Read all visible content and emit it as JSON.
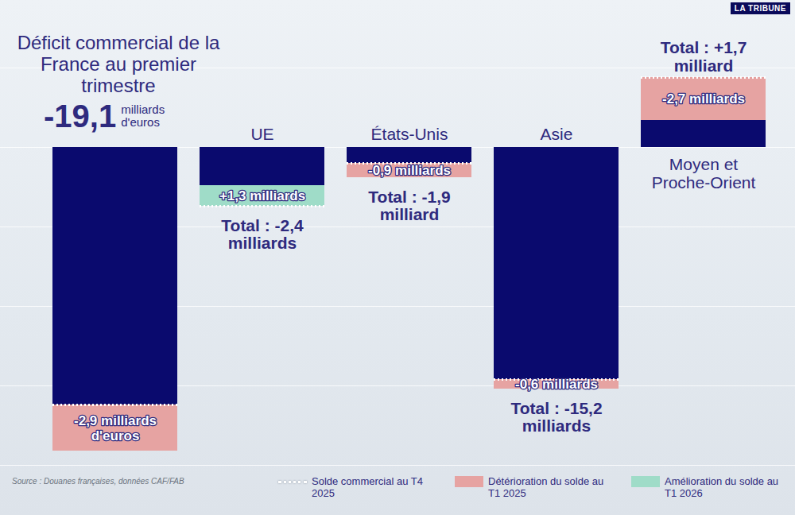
{
  "chart_data": {
    "type": "bar",
    "title": "Déficit commercial de la France au premier trimestre",
    "source": "Source : Douanes françaises, données CAF/FAB",
    "brand": "LA TRIBUNE",
    "categories": [
      null,
      "UE",
      "États-Unis",
      "Asie",
      "Moyen et Proche-Orient"
    ],
    "values": [
      -19.1,
      -2.4,
      -1.9,
      -15.2,
      1.7
    ],
    "value_labels": [
      "-19,1 milliards d'euros",
      "Total : -2,4 milliards",
      "Total : -1,9 milliard",
      "Total : -15,2 milliards",
      "Total : +1,7 milliard"
    ],
    "color": "#0a0a6e",
    "series": [
      {
        "name": "Solde commercial au T4 2025",
        "line_style": "dotted",
        "color": "#ffffff"
      },
      {
        "name": "Détérioration du solde au T1 2025",
        "color": "#e6a3a2",
        "values": [
          -2.9,
          null,
          -0.9,
          -0.6,
          -2.7
        ],
        "value_labels": [
          "-2,9 milliards d'euros",
          null,
          "-0,9 milliards",
          "-0,6 milliards",
          "-2,7 milliards"
        ]
      },
      {
        "name": "Amélioration du solde au T1 2026",
        "color": "#9fdcc8",
        "values": [
          null,
          1.3,
          null,
          null,
          null
        ],
        "value_labels": [
          null,
          "+1,3 milliards",
          null,
          null,
          null
        ]
      }
    ],
    "ylim": [
      -20,
      5
    ],
    "yticks": [
      -20,
      -15,
      -10,
      -5,
      0,
      5
    ],
    "grid": true,
    "tick_labels": false,
    "legend": "bottom"
  }
}
